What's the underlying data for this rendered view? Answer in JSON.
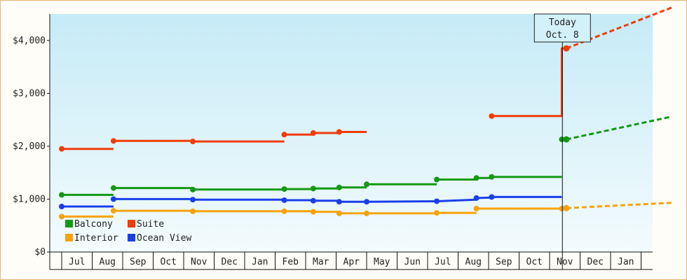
{
  "chart_data": {
    "type": "line",
    "title": "",
    "xlabel": "",
    "ylabel": "",
    "ylim": [
      0,
      4500
    ],
    "yticks": [
      "$0",
      "$1,000",
      "$2,000",
      "$3,000",
      "$4,000"
    ],
    "x_tick_labels": [
      "Jul",
      "Aug",
      "Sep",
      "Oct",
      "Nov",
      "Dec",
      "Jan",
      "Feb",
      "Mar",
      "Apr",
      "May",
      "Jun",
      "Jul",
      "Aug",
      "Sep",
      "Oct",
      "Nov",
      "Dec",
      "Jan"
    ],
    "today_marker": {
      "label": "Today",
      "date": "Oct. 8"
    },
    "legend": {
      "placement": "bottom-left",
      "columns": 2
    },
    "series": [
      {
        "name": "Balcony",
        "color": "#149914",
        "history": [
          [
            [
              0.0,
              1080
            ],
            [
              1.7,
              1080
            ]
          ],
          [
            [
              1.7,
              1210
            ],
            [
              4.3,
              1210
            ]
          ],
          [
            [
              4.3,
              1180
            ],
            [
              7.3,
              1180
            ]
          ],
          [
            [
              7.3,
              1190
            ],
            [
              8.25,
              1190
            ]
          ],
          [
            [
              8.25,
              1200
            ],
            [
              9.1,
              1200
            ]
          ],
          [
            [
              9.1,
              1220
            ],
            [
              10.0,
              1220
            ]
          ],
          [
            [
              10.0,
              1280
            ],
            [
              12.3,
              1280
            ]
          ],
          [
            [
              12.3,
              1370
            ],
            [
              13.6,
              1370
            ]
          ],
          [
            [
              13.6,
              1400
            ],
            [
              14.1,
              1400
            ]
          ],
          [
            [
              14.1,
              1420
            ],
            [
              16.4,
              1420
            ]
          ],
          [
            [
              16.4,
              2130
            ],
            [
              16.55,
              2130
            ]
          ]
        ],
        "forecast": [
          [
            16.55,
            2130
          ],
          [
            20.0,
            2560
          ]
        ]
      },
      {
        "name": "Suite",
        "color": "#f03c0a",
        "history": [
          [
            [
              0.0,
              1950
            ],
            [
              1.7,
              1950
            ]
          ],
          [
            [
              1.7,
              2100
            ],
            [
              4.3,
              2100
            ]
          ],
          [
            [
              4.3,
              2090
            ],
            [
              7.3,
              2090
            ]
          ],
          [
            [
              7.3,
              2220
            ],
            [
              8.25,
              2220
            ]
          ],
          [
            [
              8.25,
              2250
            ],
            [
              9.1,
              2250
            ]
          ],
          [
            [
              9.1,
              2270
            ],
            [
              10.0,
              2270
            ]
          ],
          [
            [
              14.1,
              2570
            ],
            [
              16.4,
              2570
            ],
            [
              16.4,
              3850
            ],
            [
              16.55,
              3850
            ]
          ]
        ],
        "forecast": [
          [
            16.55,
            3850
          ],
          [
            20.0,
            4620
          ]
        ]
      },
      {
        "name": "Interior",
        "color": "#f7a30c",
        "history": [
          [
            [
              0.0,
              670
            ],
            [
              1.7,
              670
            ]
          ],
          [
            [
              1.7,
              780
            ],
            [
              4.3,
              780
            ]
          ],
          [
            [
              4.3,
              770
            ],
            [
              7.3,
              770
            ]
          ],
          [
            [
              7.3,
              770
            ],
            [
              8.25,
              770
            ]
          ],
          [
            [
              8.25,
              760
            ],
            [
              9.1,
              760
            ]
          ],
          [
            [
              9.1,
              730
            ],
            [
              10.0,
              730
            ]
          ],
          [
            [
              10.0,
              730
            ],
            [
              12.3,
              730
            ]
          ],
          [
            [
              12.3,
              740
            ],
            [
              13.6,
              740
            ]
          ],
          [
            [
              13.6,
              820
            ],
            [
              16.4,
              820
            ]
          ],
          [
            [
              16.4,
              820
            ],
            [
              16.55,
              820
            ]
          ]
        ],
        "forecast": [
          [
            16.55,
            830
          ],
          [
            20.0,
            930
          ]
        ]
      },
      {
        "name": "Ocean View",
        "color": "#1a3fe8",
        "history": [
          [
            [
              0.0,
              860
            ],
            [
              1.7,
              860
            ]
          ],
          [
            [
              1.7,
              1000
            ],
            [
              4.3,
              1000
            ]
          ],
          [
            [
              4.3,
              990
            ],
            [
              7.3,
              990
            ]
          ],
          [
            [
              7.3,
              980
            ],
            [
              8.25,
              980
            ]
          ],
          [
            [
              8.25,
              970
            ],
            [
              9.1,
              970
            ]
          ],
          [
            [
              9.1,
              950
            ],
            [
              10.0,
              950
            ]
          ],
          [
            [
              10.0,
              950
            ],
            [
              12.3,
              960
            ]
          ],
          [
            [
              12.3,
              960
            ],
            [
              13.6,
              990
            ]
          ],
          [
            [
              13.6,
              1020
            ],
            [
              14.1,
              1030
            ]
          ],
          [
            [
              14.1,
              1040
            ],
            [
              16.4,
              1040
            ]
          ]
        ],
        "forecast": []
      }
    ]
  }
}
